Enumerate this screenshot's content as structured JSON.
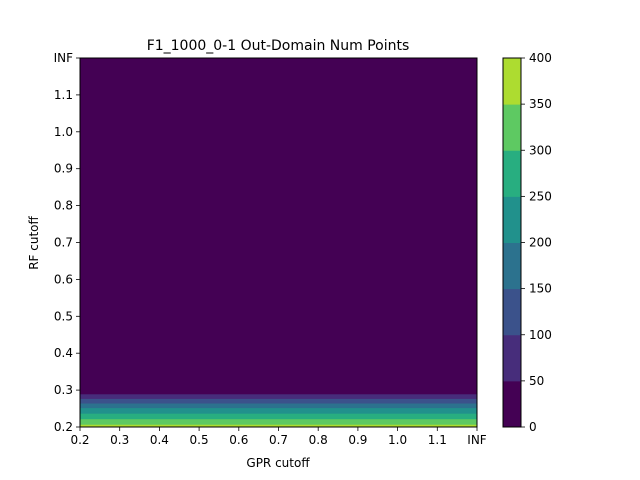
{
  "chart_data": {
    "type": "heatmap",
    "title": "F1_1000_0-1 Out-Domain Num Points",
    "xlabel": "GPR cutoff",
    "ylabel": "RF cutoff",
    "x_ticks": [
      "0.2",
      "0.3",
      "0.4",
      "0.5",
      "0.6",
      "0.7",
      "0.8",
      "0.9",
      "1.0",
      "1.1",
      "INF"
    ],
    "y_ticks": [
      "0.2",
      "0.3",
      "0.4",
      "0.5",
      "0.6",
      "0.7",
      "0.8",
      "0.9",
      "1.0",
      "1.1",
      "INF"
    ],
    "colorbar": {
      "levels": [
        0,
        50,
        100,
        150,
        200,
        250,
        300,
        350,
        400
      ],
      "tick_labels": [
        "0",
        "50",
        "100",
        "150",
        "200",
        "250",
        "300",
        "350",
        "400"
      ],
      "colors": [
        "#440154",
        "#472d7b",
        "#3b528b",
        "#2c728e",
        "#21918c",
        "#28ae80",
        "#5ec962",
        "#addc30",
        "#fde725"
      ]
    },
    "bands": [
      {
        "y_from": 0.2,
        "y_to": 0.2075,
        "value": 375
      },
      {
        "y_from": 0.2075,
        "y_to": 0.2225,
        "value": 325
      },
      {
        "y_from": 0.2225,
        "y_to": 0.2375,
        "value": 275
      },
      {
        "y_from": 0.2375,
        "y_to": 0.2525,
        "value": 225
      },
      {
        "y_from": 0.2525,
        "y_to": 0.265,
        "value": 175
      },
      {
        "y_from": 0.265,
        "y_to": 0.2775,
        "value": 125
      },
      {
        "y_from": 0.2775,
        "y_to": 0.29,
        "value": 75
      },
      {
        "y_from": 0.29,
        "y_to": 1.2,
        "value": 25
      }
    ],
    "note_inf_position": 1.2,
    "grid": false,
    "legend": "colorbar-right"
  }
}
